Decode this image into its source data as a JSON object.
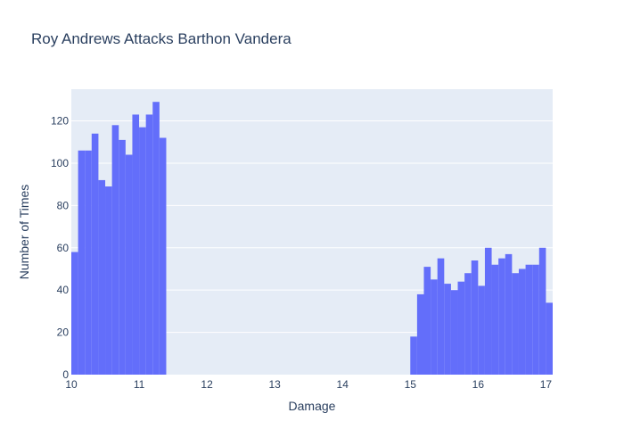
{
  "chart_data": {
    "type": "bar",
    "title": "Roy Andrews Attacks Barthon Vandera",
    "xlabel": "Damage",
    "ylabel": "Number of Times",
    "xlim": [
      10,
      17.1
    ],
    "ylim": [
      0,
      135
    ],
    "xticks": [
      10,
      11,
      12,
      13,
      14,
      15,
      16,
      17
    ],
    "yticks": [
      0,
      20,
      40,
      60,
      80,
      100,
      120
    ],
    "bin_width": 0.1,
    "bins": [
      {
        "x0": 10.0,
        "value": 58
      },
      {
        "x0": 10.1,
        "value": 106
      },
      {
        "x0": 10.2,
        "value": 106
      },
      {
        "x0": 10.3,
        "value": 114
      },
      {
        "x0": 10.4,
        "value": 92
      },
      {
        "x0": 10.5,
        "value": 89
      },
      {
        "x0": 10.6,
        "value": 118
      },
      {
        "x0": 10.7,
        "value": 111
      },
      {
        "x0": 10.8,
        "value": 104
      },
      {
        "x0": 10.9,
        "value": 123
      },
      {
        "x0": 11.0,
        "value": 117
      },
      {
        "x0": 11.1,
        "value": 123
      },
      {
        "x0": 11.2,
        "value": 129
      },
      {
        "x0": 11.3,
        "value": 112
      },
      {
        "x0": 15.0,
        "value": 18
      },
      {
        "x0": 15.1,
        "value": 38
      },
      {
        "x0": 15.2,
        "value": 51
      },
      {
        "x0": 15.3,
        "value": 45
      },
      {
        "x0": 15.4,
        "value": 55
      },
      {
        "x0": 15.5,
        "value": 43
      },
      {
        "x0": 15.6,
        "value": 40
      },
      {
        "x0": 15.7,
        "value": 44
      },
      {
        "x0": 15.8,
        "value": 48
      },
      {
        "x0": 15.9,
        "value": 54
      },
      {
        "x0": 16.0,
        "value": 42
      },
      {
        "x0": 16.1,
        "value": 60
      },
      {
        "x0": 16.2,
        "value": 52
      },
      {
        "x0": 16.3,
        "value": 55
      },
      {
        "x0": 16.4,
        "value": 57
      },
      {
        "x0": 16.5,
        "value": 48
      },
      {
        "x0": 16.6,
        "value": 50
      },
      {
        "x0": 16.7,
        "value": 52
      },
      {
        "x0": 16.8,
        "value": 52
      },
      {
        "x0": 16.9,
        "value": 60
      },
      {
        "x0": 17.0,
        "value": 34
      }
    ],
    "bar_color": "#636efa",
    "plot_background": "#e5ecf6",
    "grid": true,
    "legend": "none"
  }
}
